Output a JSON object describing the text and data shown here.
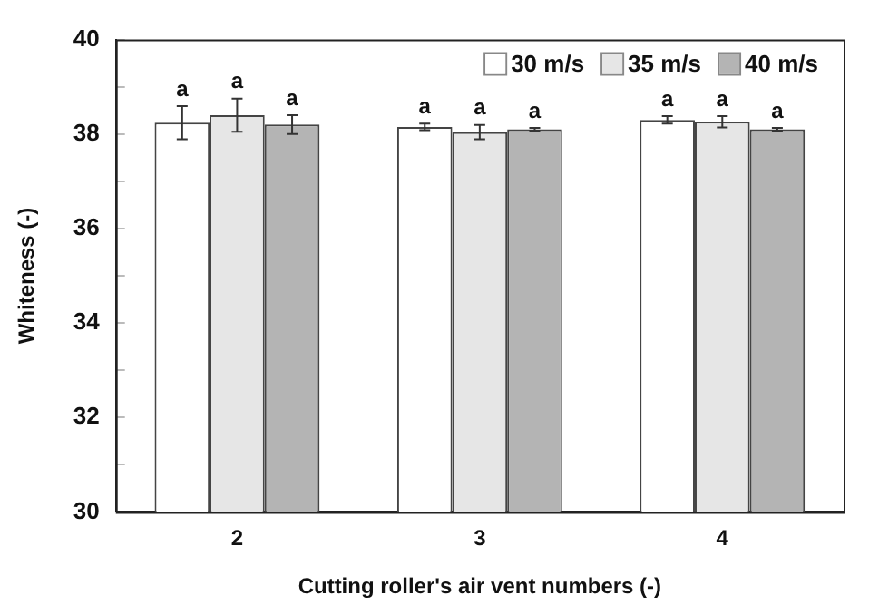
{
  "chart_data": {
    "type": "bar",
    "xlabel": "Cutting roller's air vent numbers (-)",
    "ylabel": "Whiteness (-)",
    "categories": [
      "2",
      "3",
      "4"
    ],
    "series": [
      {
        "name": "30 m/s",
        "color": "#ffffff",
        "values": [
          38.24,
          38.15,
          38.3
        ],
        "errors": [
          0.35,
          0.07,
          0.08
        ]
      },
      {
        "name": "35 m/s",
        "color": "#e6e6e6",
        "values": [
          38.4,
          38.04,
          38.26
        ],
        "errors": [
          0.35,
          0.15,
          0.12
        ]
      },
      {
        "name": "40 m/s",
        "color": "#b4b4b4",
        "values": [
          38.2,
          38.1,
          38.1
        ],
        "errors": [
          0.2,
          0.03,
          0.03
        ]
      }
    ],
    "ylim": [
      30,
      40
    ],
    "yticks": [
      30,
      {
        "value": 31,
        "label": null
      },
      32,
      {
        "value": 33,
        "label": null
      },
      34,
      {
        "value": 35,
        "label": null
      },
      36,
      {
        "value": 37,
        "label": null
      },
      38,
      {
        "value": 39,
        "label": null
      },
      40
    ],
    "annotations": [
      "a",
      "a",
      "a",
      "a",
      "a",
      "a",
      "a",
      "a",
      "a"
    ],
    "grid": false,
    "legend": "top right"
  }
}
